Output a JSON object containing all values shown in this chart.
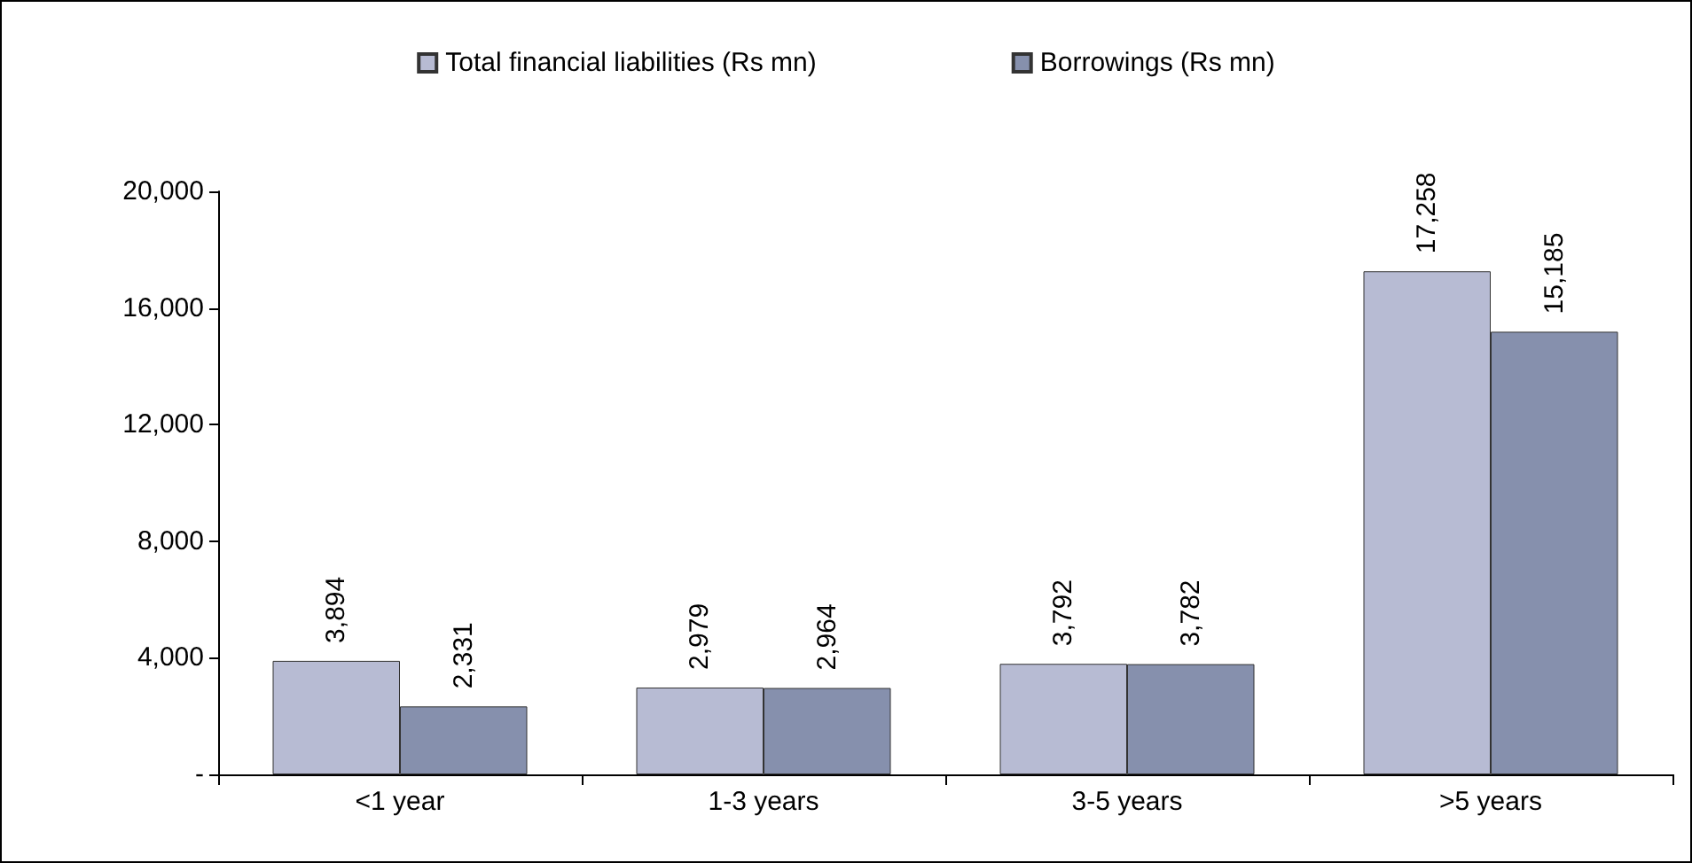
{
  "chart_data": {
    "type": "bar",
    "categories": [
      "<1 year",
      "1-3 years",
      "3-5 years",
      ">5 years"
    ],
    "series": [
      {
        "name": "Total financial liabilities (Rs mn)",
        "color": "#b7bbd3",
        "values": [
          3894,
          2979,
          3792,
          17258
        ],
        "value_labels": [
          "3,894",
          "2,979",
          "3,792",
          "17,258"
        ]
      },
      {
        "name": "Borrowings (Rs mn)",
        "color": "#8690ad",
        "values": [
          2331,
          2964,
          3782,
          15185
        ],
        "value_labels": [
          "2,331",
          "2,964",
          "3,782",
          "15,185"
        ]
      }
    ],
    "ylim": [
      0,
      20000
    ],
    "yticks": [
      {
        "value": 0,
        "label": "-"
      },
      {
        "value": 4000,
        "label": "4,000"
      },
      {
        "value": 8000,
        "label": "8,000"
      },
      {
        "value": 12000,
        "label": "12,000"
      },
      {
        "value": 16000,
        "label": "16,000"
      },
      {
        "value": 20000,
        "label": "20,000"
      }
    ],
    "grid": false,
    "legend": "top"
  }
}
